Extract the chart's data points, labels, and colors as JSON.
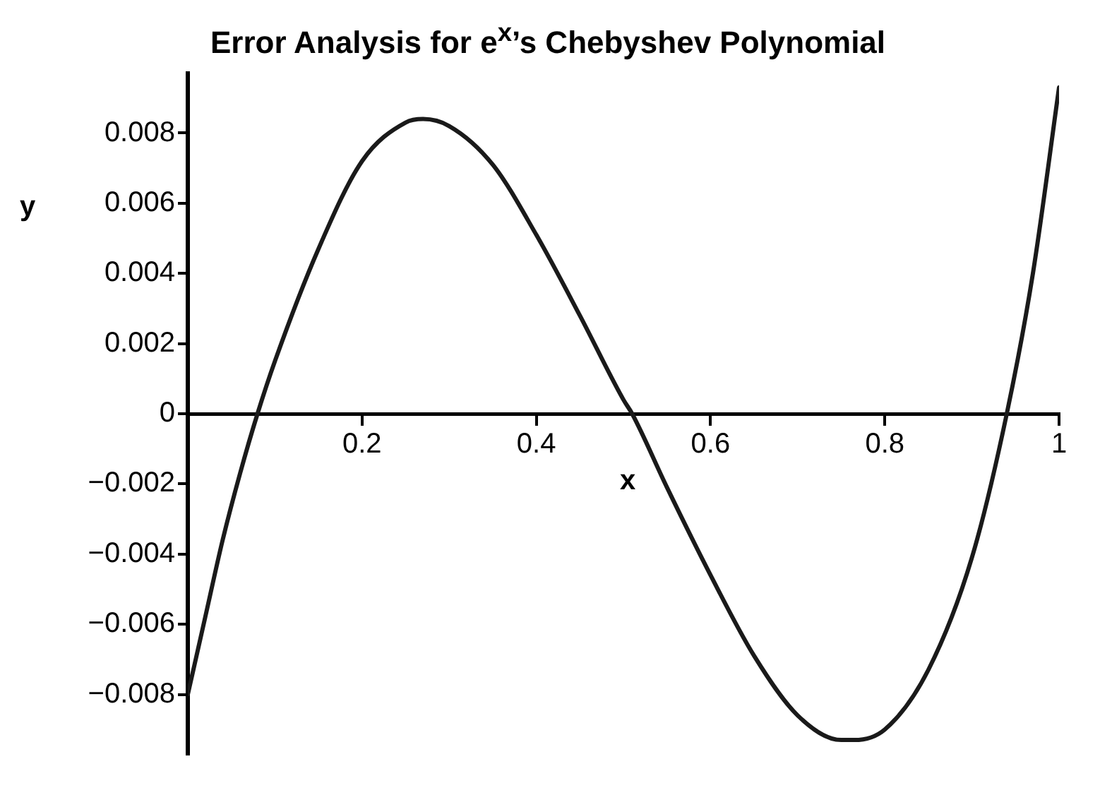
{
  "chart_data": {
    "type": "line",
    "title": "Error Analysis for e$^{x}$’s Chebyshev Polynomial",
    "xlabel": "x",
    "ylabel": "y",
    "xlim": [
      0,
      1
    ],
    "xticks": [
      0.2,
      0.4,
      0.6,
      0.8,
      1
    ],
    "ylim": [
      -0.0097,
      0.0097
    ],
    "yticks": [
      {
        "value": -0.008,
        "label": "−0.008"
      },
      {
        "value": -0.006,
        "label": "−0.006"
      },
      {
        "value": -0.004,
        "label": "−0.004"
      },
      {
        "value": -0.002,
        "label": "−0.002"
      },
      0,
      0.002,
      0.004,
      0.006,
      0.008
    ],
    "grid": false,
    "legend": false,
    "marker": "none",
    "line_style": "solid",
    "series": [
      {
        "color": "#1a1a1a",
        "x": [
          0,
          0.02,
          0.04,
          0.06,
          0.08,
          0.1,
          0.15,
          0.2,
          0.25,
          0.27,
          0.3,
          0.35,
          0.4,
          0.45,
          0.5,
          0.51,
          0.55,
          0.6,
          0.65,
          0.7,
          0.75,
          0.765,
          0.8,
          0.85,
          0.9,
          0.94,
          0.97,
          1
        ],
        "values": [
          -0.008,
          -0.0058,
          -0.0036,
          -0.0017,
          0,
          0.0015,
          0.0047,
          0.0072,
          0.0083,
          0.0084,
          0.0082,
          0.0071,
          0.0051,
          0.0028,
          0.0004,
          0,
          -0.0021,
          -0.0046,
          -0.0069,
          -0.0086,
          -0.0093,
          -0.0093,
          -0.009,
          -0.0073,
          -0.0041,
          0,
          0.004,
          0.0093
        ]
      }
    ]
  }
}
